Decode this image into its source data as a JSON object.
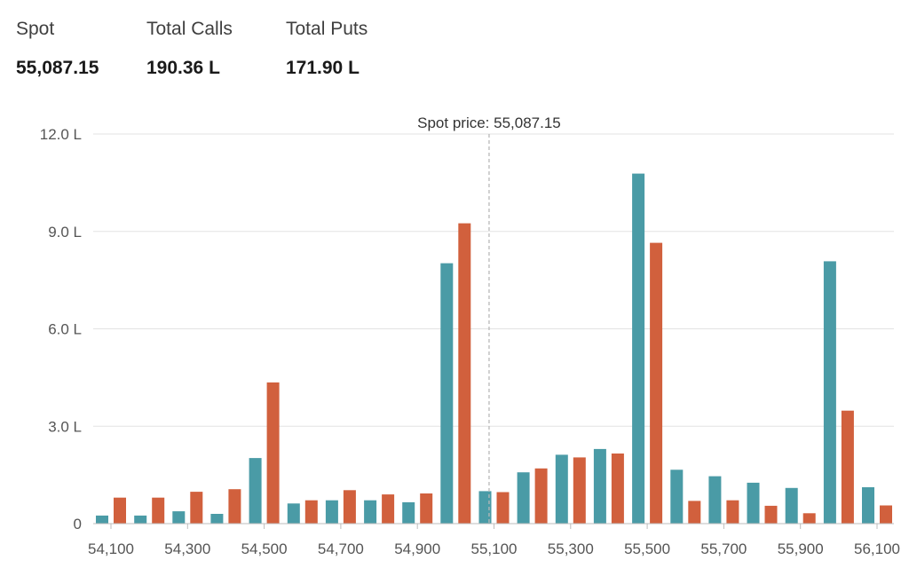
{
  "summary": {
    "spot_label": "Spot",
    "spot_value": "55,087.15",
    "calls_label": "Total Calls",
    "calls_value": "190.36 L",
    "puts_label": "Total Puts",
    "puts_value": "171.90 L"
  },
  "chart_data": {
    "type": "bar",
    "x": [
      54100,
      54200,
      54300,
      54400,
      54500,
      54600,
      54700,
      54800,
      54900,
      55000,
      55100,
      55200,
      55300,
      55400,
      55500,
      55600,
      55700,
      55800,
      55900,
      56000,
      56100
    ],
    "x_tick_labels": [
      "54,100",
      "54,300",
      "54,500",
      "54,700",
      "54,900",
      "55,100",
      "55,300",
      "55,500",
      "55,700",
      "55,900",
      "56,100"
    ],
    "x_tick_values": [
      54100,
      54300,
      54500,
      54700,
      54900,
      55100,
      55300,
      55500,
      55700,
      55900,
      56100
    ],
    "y_tick_labels": [
      "0",
      "3.0 L",
      "6.0 L",
      "9.0 L",
      "12.0 L"
    ],
    "y_tick_values": [
      0,
      3,
      6,
      9,
      12
    ],
    "ylim": [
      0,
      12
    ],
    "grid": true,
    "series": [
      {
        "values": [
          0.25,
          0.25,
          0.38,
          0.3,
          2.02,
          0.62,
          0.72,
          0.72,
          0.66,
          8.02,
          1.0,
          1.58,
          2.12,
          2.3,
          10.78,
          1.66,
          1.46,
          1.26,
          1.1,
          8.08,
          1.12
        ],
        "color": "#4a9ba6"
      },
      {
        "values": [
          0.8,
          0.8,
          0.98,
          1.06,
          4.35,
          0.72,
          1.03,
          0.9,
          0.93,
          9.25,
          0.97,
          1.7,
          2.04,
          2.16,
          8.65,
          0.7,
          0.72,
          0.55,
          0.32,
          3.48,
          0.56
        ],
        "color": "#d1603d"
      }
    ],
    "spot": 55087.15,
    "spot_annotation": "Spot price: 55,087.15"
  }
}
